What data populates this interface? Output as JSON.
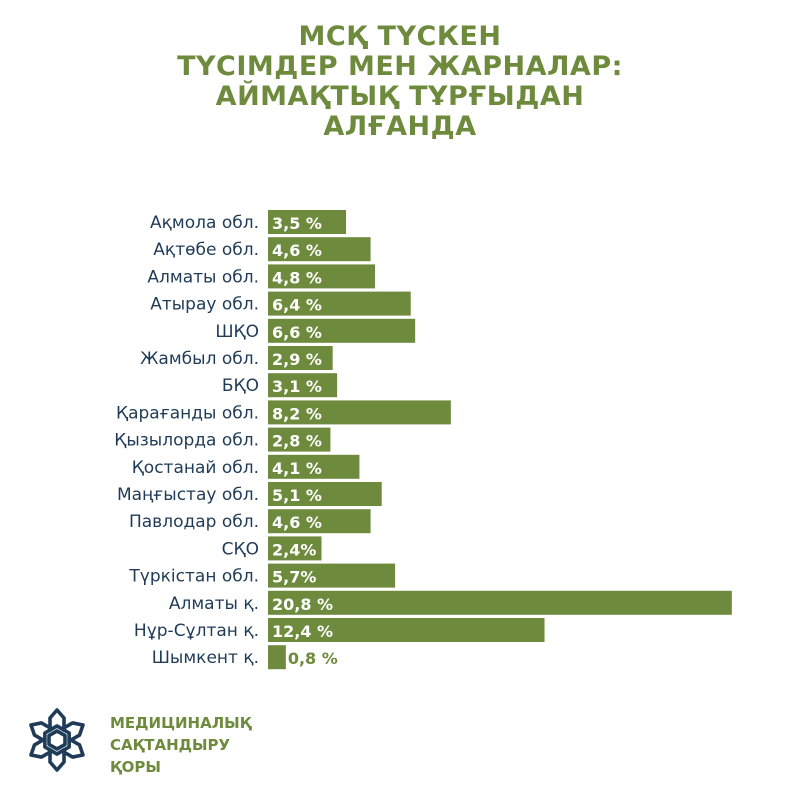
{
  "title_lines": [
    "МСҚ ТҮСКЕН",
    "ТҮСІМДЕР МЕН ЖАРНАЛАР:",
    "АЙМАҚТЫҚ ТҰРҒЫДАН",
    "АЛҒАНДА"
  ],
  "brand": {
    "lines": [
      "МЕДИЦИНАЛЫҚ",
      "САҚТАНДЫРУ",
      "ҚОРЫ"
    ],
    "logo_icon": "snowflake-logo-icon",
    "logo_color": "#1f3b57"
  },
  "colors": {
    "bar": "#6e8b3d",
    "label": "#1f3b57",
    "title": "#6e8b3d"
  },
  "chart_data": {
    "type": "bar",
    "orientation": "horizontal",
    "title": "",
    "xlabel": "",
    "ylabel": "",
    "grid": false,
    "categories": [
      "Ақмола обл.",
      "Ақтөбе обл.",
      "Алматы обл.",
      "Атырау обл.",
      "ШҚО",
      "Жамбыл обл.",
      "БҚО",
      "Қарағанды обл.",
      "Қызылорда обл.",
      "Қостанай обл.",
      "Маңғыстау обл.",
      "Павлодар обл.",
      "СҚО",
      "Түркістан обл.",
      "Алматы қ.",
      "Нұр-Сұлтан қ.",
      "Шымкент қ."
    ],
    "values": [
      3.5,
      4.6,
      4.8,
      6.4,
      6.6,
      2.9,
      3.1,
      8.2,
      2.8,
      4.1,
      5.1,
      4.6,
      2.4,
      5.7,
      20.8,
      12.4,
      0.8
    ],
    "value_labels": [
      "3,5  %",
      "4,6  %",
      "4,8  %",
      "6,4  %",
      "6,6  %",
      "2,9 %",
      "3,1 %",
      "8,2  %",
      "2,8 %",
      "4,1  %",
      "5,1  %",
      "4,6  %",
      "2,4%",
      "5,7%",
      "20,8 %",
      "12,4 %",
      "0,8 %"
    ],
    "unit": "%"
  }
}
